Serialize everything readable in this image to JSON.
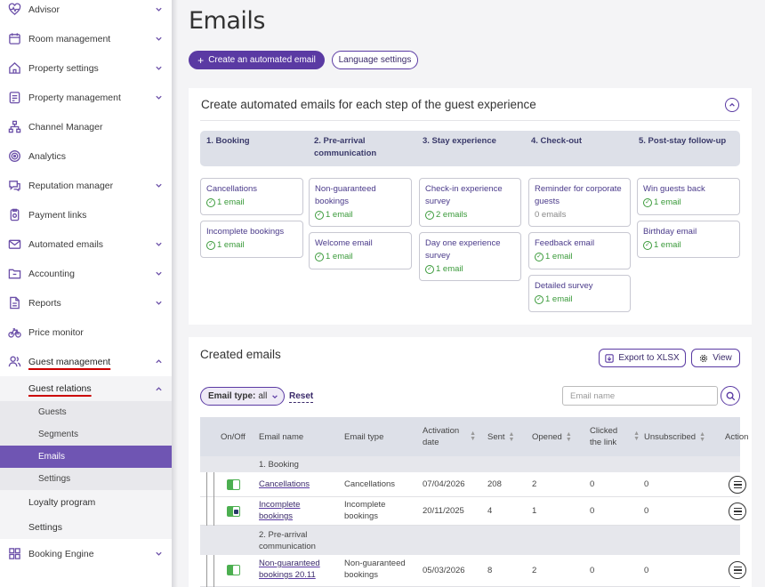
{
  "sidebar": {
    "items": [
      {
        "label": "Advisor",
        "icon": "heart-pulse-icon",
        "chevron": true
      },
      {
        "label": "Room management",
        "icon": "calendar-icon",
        "chevron": true
      },
      {
        "label": "Property settings",
        "icon": "house-icon",
        "chevron": true
      },
      {
        "label": "Property management",
        "icon": "clipboard-icon",
        "chevron": true
      },
      {
        "label": "Channel Manager",
        "icon": "sitemap-icon",
        "chevron": false
      },
      {
        "label": "Analytics",
        "icon": "target-icon",
        "chevron": false
      },
      {
        "label": "Reputation manager",
        "icon": "chat-icon",
        "chevron": true
      },
      {
        "label": "Payment links",
        "icon": "receipt-icon",
        "chevron": false
      },
      {
        "label": "Automated emails",
        "icon": "envelope-icon",
        "chevron": true
      },
      {
        "label": "Accounting",
        "icon": "folder-icon",
        "chevron": true
      },
      {
        "label": "Reports",
        "icon": "document-icon",
        "chevron": true
      },
      {
        "label": "Price monitor",
        "icon": "bicycle-icon",
        "chevron": false
      },
      {
        "label": "Guest management",
        "icon": "users-icon",
        "chevron": true
      }
    ],
    "guest_relations": "Guest relations",
    "sub_items": [
      "Guests",
      "Segments",
      "Emails",
      "Settings"
    ],
    "loyalty": "Loyalty program",
    "settings": "Settings",
    "booking_engine": "Booking Engine"
  },
  "header": {
    "title": "Emails",
    "create_button": "Create an automated email",
    "language_button": "Language settings"
  },
  "steps_card": {
    "title": "Create automated emails for each step of the guest experience",
    "steps": [
      {
        "label": "1. Booking",
        "emails": [
          {
            "name": "Cancellations",
            "count": "1 email"
          },
          {
            "name": "Incomplete bookings",
            "count": "1 email"
          }
        ]
      },
      {
        "label": "2. Pre-arrival communication",
        "emails": [
          {
            "name": "Non-guaranteed bookings",
            "count": "1 email"
          },
          {
            "name": "Welcome email",
            "count": "1 email"
          }
        ]
      },
      {
        "label": "3. Stay experience",
        "emails": [
          {
            "name": "Check-in experience survey",
            "count": "2 emails"
          },
          {
            "name": "Day one experience survey",
            "count": "1 email"
          }
        ]
      },
      {
        "label": "4. Check-out",
        "emails": [
          {
            "name": "Reminder for corporate guests",
            "count": "0 emails"
          },
          {
            "name": "Feedback email",
            "count": "1 email"
          },
          {
            "name": "Detailed survey",
            "count": "1 email"
          }
        ]
      },
      {
        "label": "5. Post-stay follow-up",
        "emails": [
          {
            "name": "Win guests back",
            "count": "1 email"
          },
          {
            "name": "Birthday email",
            "count": "1 email"
          }
        ]
      }
    ]
  },
  "created": {
    "title": "Created emails",
    "export_button": "Export to XLSX",
    "view_button": "View",
    "filter_label": "Email type:",
    "filter_value": "all",
    "reset": "Reset",
    "search_placeholder": "Email name",
    "columns": [
      "On/Off",
      "Email name",
      "Email type",
      "Activation date",
      "Sent",
      "Opened",
      "Clicked the link",
      "Unsubscribed",
      "Action"
    ],
    "groups": [
      "1. Booking",
      "2. Pre-arrival communication"
    ],
    "rows": [
      {
        "name": "Cancellations",
        "type": "Cancellations",
        "date": "07/04/2026",
        "sent": "208",
        "opened": "2",
        "clicked": "0",
        "unsubscribed": "0"
      },
      {
        "name": "Incomplete bookings",
        "type": "Incomplete bookings",
        "date": "20/11/2025",
        "sent": "4",
        "opened": "1",
        "clicked": "0",
        "unsubscribed": "0"
      },
      {
        "name": "Non-guaranteed bookings 20.11",
        "type": "Non-guaranteed bookings",
        "date": "05/03/2026",
        "sent": "8",
        "opened": "2",
        "clicked": "0",
        "unsubscribed": "0"
      }
    ]
  },
  "colors": {
    "accent": "#5a3aa3",
    "selected": "#6f55b3",
    "success": "#3a9a3a",
    "alert_underline": "#cc0000"
  }
}
